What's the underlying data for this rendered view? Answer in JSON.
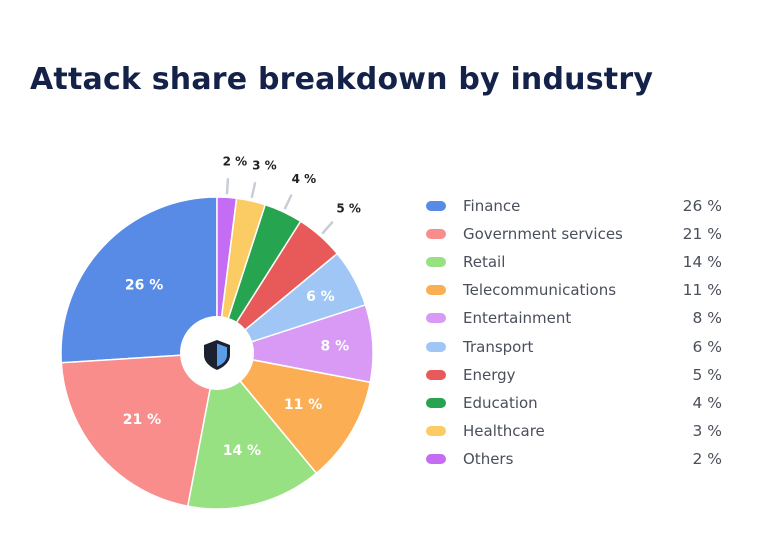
{
  "title": "Attack share breakdown by industry",
  "center_icon": "shield-icon",
  "chart_data": {
    "type": "pie",
    "title": "Attack share breakdown by industry",
    "unit": "%",
    "categories": [
      "Finance",
      "Government services",
      "Retail",
      "Telecommunications",
      "Entertainment",
      "Transport",
      "Energy",
      "Education",
      "Healthcare",
      "Others"
    ],
    "values": [
      26,
      21,
      14,
      11,
      8,
      6,
      5,
      4,
      3,
      2
    ],
    "labels": [
      "26 %",
      "21 %",
      "14 %",
      "11 %",
      "8 %",
      "6 %",
      "5 %",
      "4 %",
      "3 %",
      "2 %"
    ],
    "colors": [
      "#578be6",
      "#f88d8b",
      "#97e182",
      "#fcae55",
      "#d89af5",
      "#a0c6f6",
      "#e85a5a",
      "#26a44f",
      "#fbcb64",
      "#c46cf4"
    ],
    "legend_position": "right"
  }
}
